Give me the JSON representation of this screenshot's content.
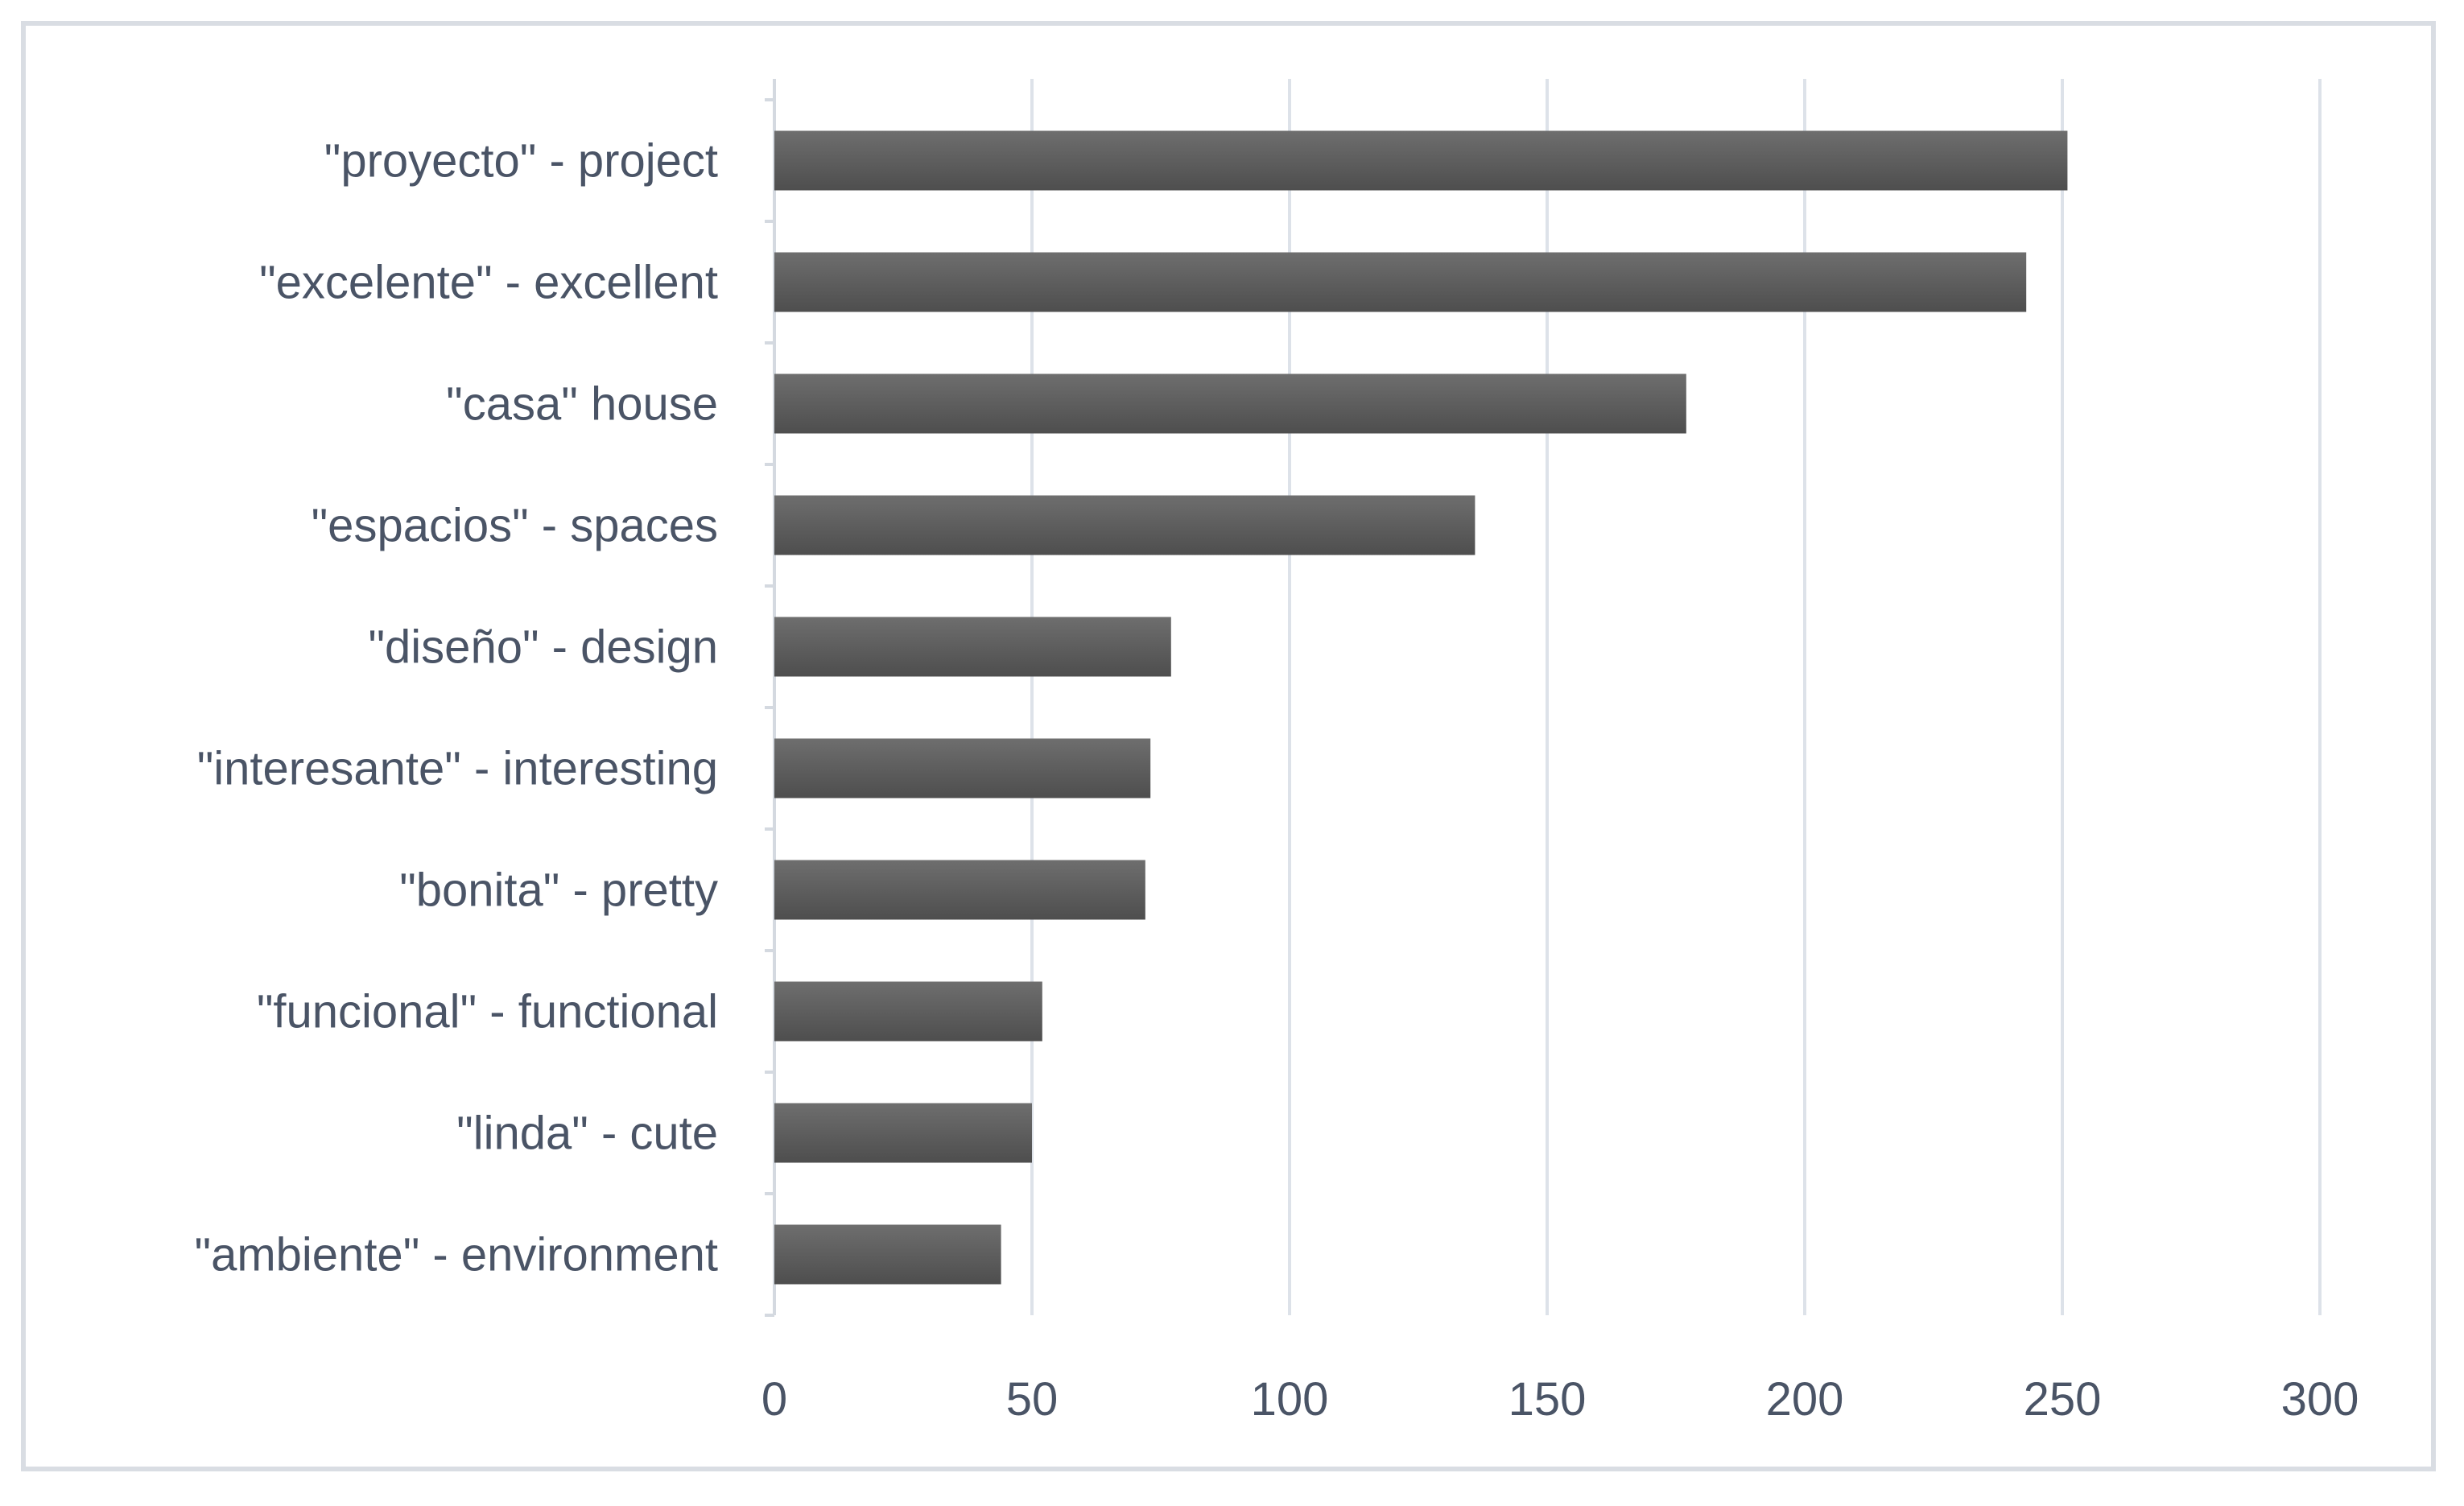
{
  "chart_data": {
    "type": "bar",
    "orientation": "horizontal",
    "title": "",
    "xlabel": "",
    "ylabel": "",
    "categories": [
      "\"proyecto\" - project",
      "\"excelente\" - excellent",
      "\"casa\" house",
      "\"espacios\" - spaces",
      "\"diseño\" - design",
      "\"interesante\" - interesting",
      "\"bonita\" - pretty",
      "\"funcional\" - functional",
      "\"linda\" - cute",
      "\"ambiente\" - environment"
    ],
    "values": [
      251,
      243,
      177,
      136,
      77,
      73,
      72,
      52,
      50,
      44
    ],
    "xlim": [
      0,
      300
    ],
    "xticks": [
      "0",
      "50",
      "100",
      "150",
      "200",
      "250",
      "300"
    ],
    "xtick_values": [
      0,
      50,
      100,
      150,
      200,
      250,
      300
    ],
    "grid": "vertical",
    "legend": "none",
    "colors": {
      "bar_top": "#6e6e6e",
      "bar_bottom": "#4e4e4e",
      "grid": "#dde2e9",
      "axis": "#d4d9e0",
      "text": "#4a5466",
      "frame": "#d9dde3"
    }
  }
}
